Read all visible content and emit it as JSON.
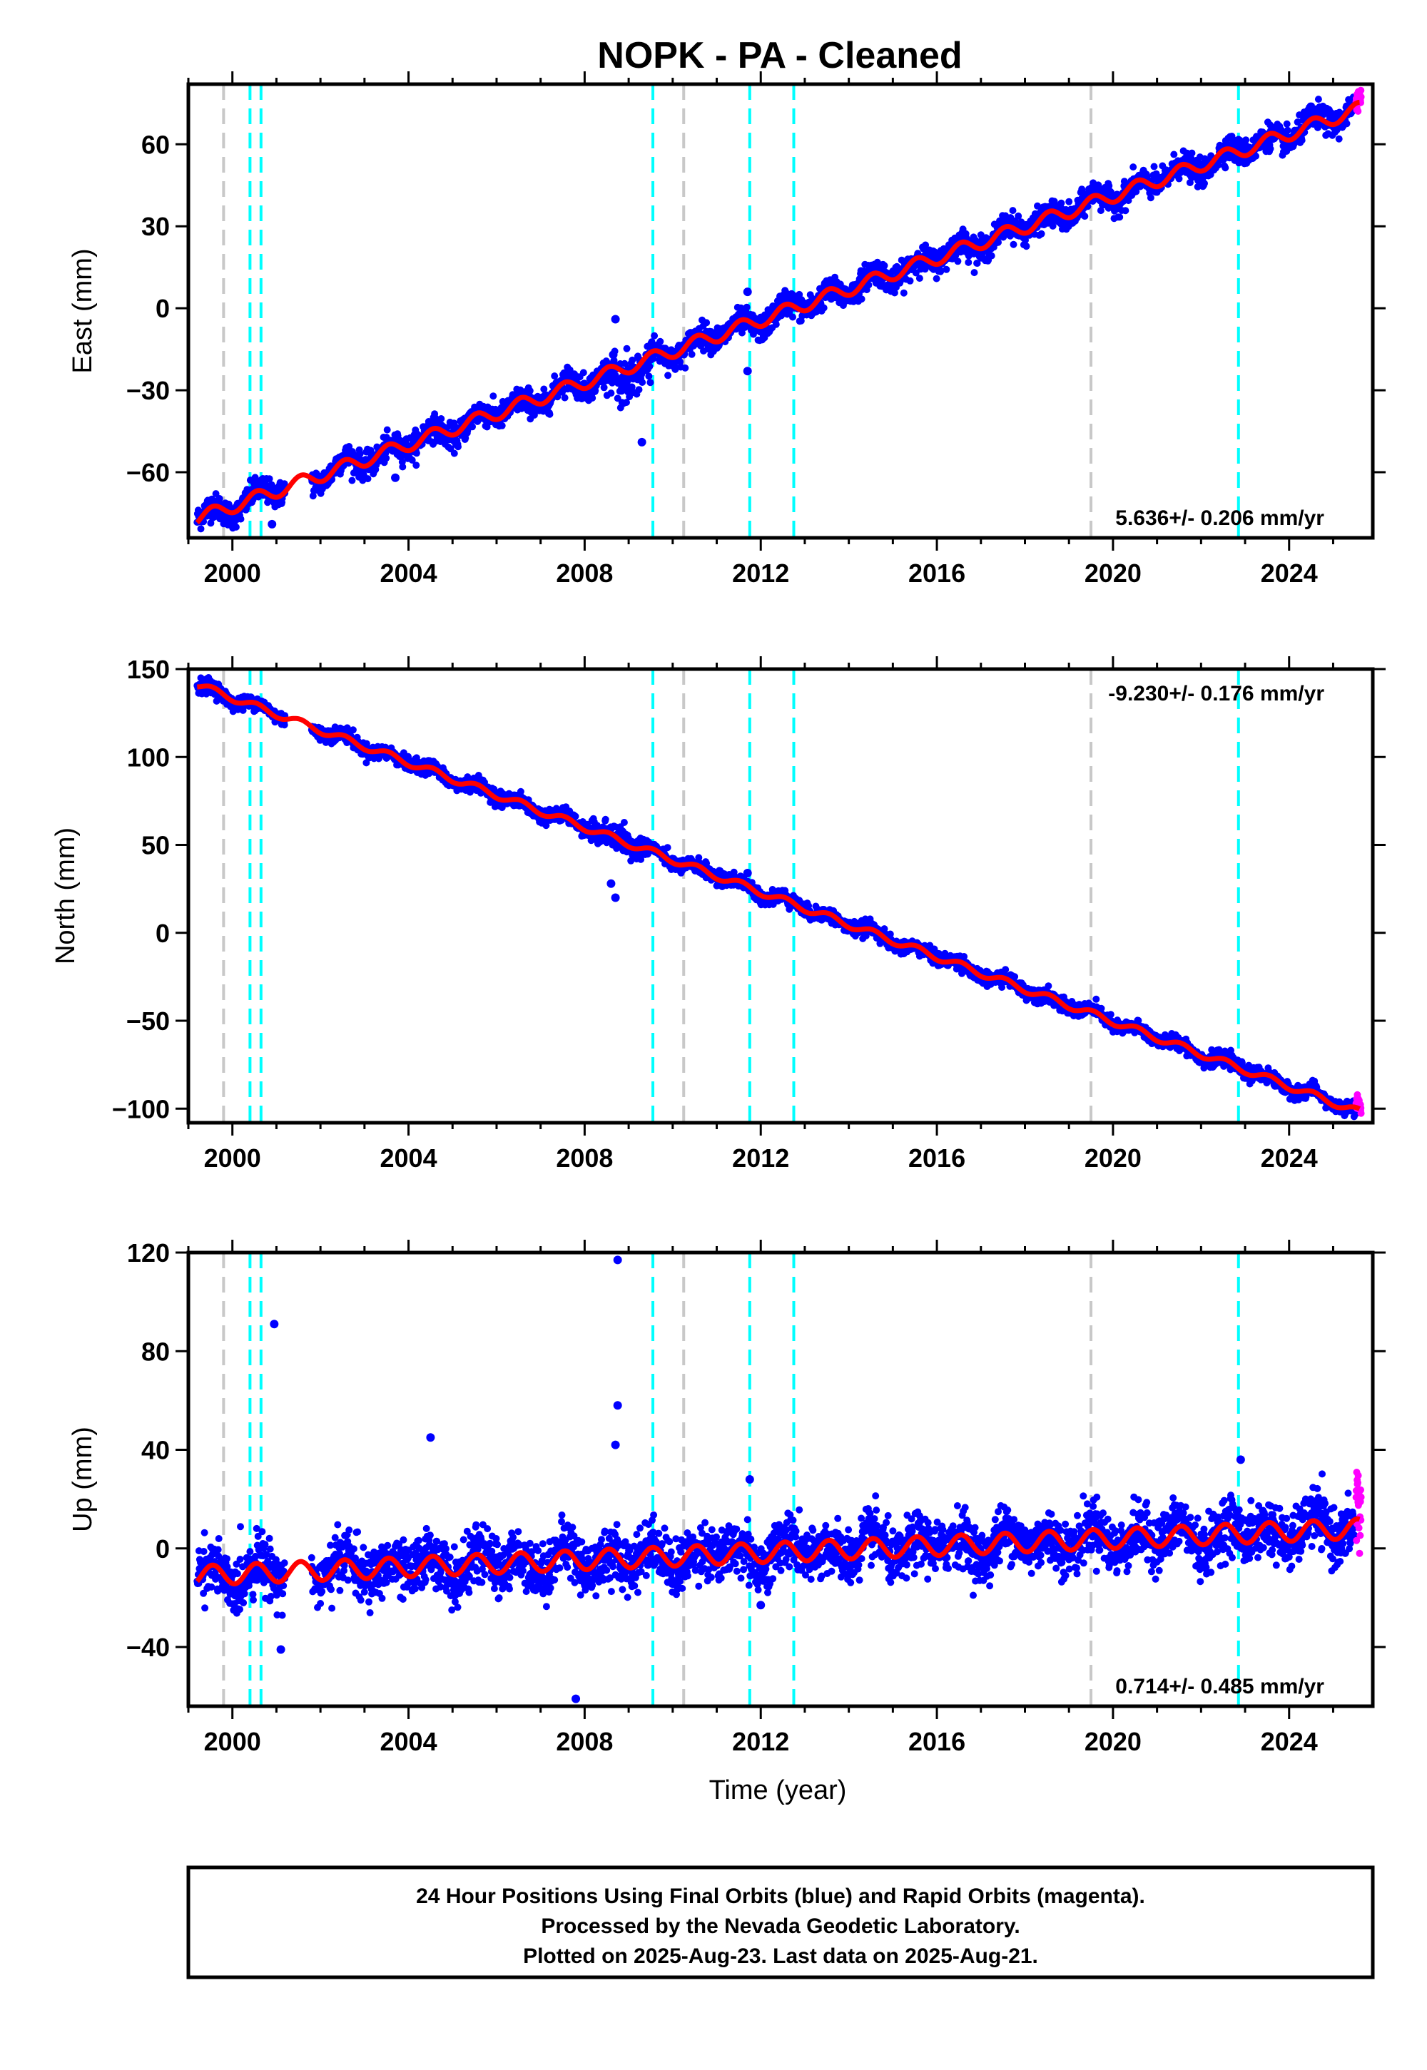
{
  "title": "NOPK  - PA - Cleaned",
  "footer": {
    "lines": [
      "24 Hour Positions Using Final Orbits (blue) and Rapid Orbits (magenta).",
      "Processed by the Nevada Geodetic Laboratory.",
      "Plotted on 2025-Aug-23. Last data on 2025-Aug-21."
    ]
  },
  "colors": {
    "final_orbits": "#0000ff",
    "rapid_orbits": "#ff00ff",
    "model": "#ff0000",
    "event_gray": "#c8c8c8",
    "event_cyan": "#00ffff"
  },
  "chart_data": [
    {
      "type": "scatter",
      "component": "east",
      "ylabel": "East (mm)",
      "xlabel": "",
      "xlim": [
        1999.0,
        2025.9
      ],
      "ylim": [
        -84,
        82
      ],
      "xticks": [
        2000,
        2004,
        2008,
        2012,
        2016,
        2020,
        2024
      ],
      "yticks": [
        -60,
        -30,
        0,
        30,
        60
      ],
      "rate_label": "5.636+/- 0.206 mm/yr",
      "rate_label_position": "bottom-right",
      "model_trend": {
        "start": [
          1999.2,
          -77
        ],
        "end": [
          2025.6,
          73
        ]
      },
      "seasonal_amplitude_mm": 2.5,
      "data_start": 1999.2,
      "data_end": 2025.64,
      "data_gap": [
        2001.2,
        2001.8
      ],
      "outliers": [
        [
          2008.7,
          -4
        ],
        [
          2008.65,
          -17
        ],
        [
          2009.3,
          -49
        ],
        [
          2011.7,
          6
        ],
        [
          2011.7,
          -23
        ],
        [
          2003.7,
          -62
        ],
        [
          2000.9,
          -79
        ]
      ],
      "events_gray": [
        1999.8,
        2010.25,
        2019.5
      ],
      "events_cyan": [
        2000.4,
        2000.65,
        2009.55,
        2011.75,
        2012.75,
        2022.85
      ]
    },
    {
      "type": "scatter",
      "component": "north",
      "ylabel": "North (mm)",
      "xlabel": "",
      "xlim": [
        1999.0,
        2025.9
      ],
      "ylim": [
        -108,
        150
      ],
      "xticks": [
        2000,
        2004,
        2008,
        2012,
        2016,
        2020,
        2024
      ],
      "yticks": [
        -100,
        -50,
        0,
        50,
        100,
        150
      ],
      "rate_label": "-9.230+/- 0.176 mm/yr",
      "rate_label_position": "top-right",
      "model_trend": {
        "start": [
          1999.2,
          141
        ],
        "end": [
          2025.6,
          -102
        ]
      },
      "seasonal_amplitude_mm": 2.0,
      "data_start": 1999.2,
      "data_end": 2025.64,
      "data_gap": [
        2001.2,
        2001.8
      ],
      "outliers": [
        [
          2008.7,
          20
        ],
        [
          2008.6,
          28
        ],
        [
          2011.7,
          34
        ],
        [
          2011.6,
          31
        ]
      ],
      "events_gray": [
        1999.8,
        2010.25,
        2019.5
      ],
      "events_cyan": [
        2000.4,
        2000.65,
        2009.55,
        2011.75,
        2012.75,
        2022.85
      ]
    },
    {
      "type": "scatter",
      "component": "up",
      "ylabel": "Up (mm)",
      "xlabel": "Time (year)",
      "xlim": [
        1999.0,
        2025.9
      ],
      "ylim": [
        -64,
        120
      ],
      "xticks": [
        2000,
        2004,
        2008,
        2012,
        2016,
        2020,
        2024
      ],
      "yticks": [
        -40,
        0,
        40,
        80,
        120
      ],
      "rate_label": "0.714+/- 0.485 mm/yr",
      "rate_label_position": "bottom-right",
      "model_trend": {
        "start": [
          1999.2,
          -11
        ],
        "end": [
          2025.6,
          8
        ]
      },
      "seasonal_amplitude_mm": 4.0,
      "data_start": 1999.2,
      "data_end": 2025.64,
      "data_gap": [
        2001.2,
        2001.8
      ],
      "outliers": [
        [
          2000.95,
          91
        ],
        [
          2008.75,
          117
        ],
        [
          2008.75,
          58
        ],
        [
          2008.7,
          42
        ],
        [
          2004.5,
          45
        ],
        [
          2007.8,
          -61
        ],
        [
          2011.75,
          28
        ],
        [
          2022.9,
          36
        ],
        [
          2012.0,
          -23
        ],
        [
          2001.1,
          -41
        ]
      ],
      "events_gray": [
        1999.8,
        2010.25,
        2019.5
      ],
      "events_cyan": [
        2000.4,
        2000.65,
        2009.55,
        2011.75,
        2012.75,
        2022.85
      ]
    }
  ]
}
